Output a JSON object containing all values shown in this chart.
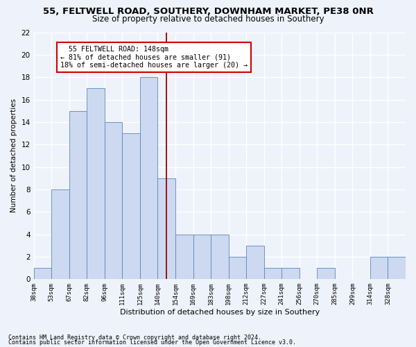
{
  "title1": "55, FELTWELL ROAD, SOUTHERY, DOWNHAM MARKET, PE38 0NR",
  "title2": "Size of property relative to detached houses in Southery",
  "xlabel": "Distribution of detached houses by size in Southery",
  "ylabel": "Number of detached properties",
  "bin_labels": [
    "38sqm",
    "53sqm",
    "67sqm",
    "82sqm",
    "96sqm",
    "111sqm",
    "125sqm",
    "140sqm",
    "154sqm",
    "169sqm",
    "183sqm",
    "198sqm",
    "212sqm",
    "227sqm",
    "241sqm",
    "256sqm",
    "270sqm",
    "285sqm",
    "299sqm",
    "314sqm",
    "328sqm"
  ],
  "bar_values": [
    1,
    8,
    15,
    17,
    14,
    13,
    18,
    9,
    4,
    4,
    4,
    2,
    3,
    1,
    1,
    0,
    1,
    0,
    0,
    2,
    2
  ],
  "bar_color": "#ccd9f0",
  "bar_edge_color": "#5588bb",
  "property_line_x": 7.5,
  "vline_color": "#990000",
  "annotation_text": "  55 FELTWELL ROAD: 148sqm\n← 81% of detached houses are smaller (91)\n18% of semi-detached houses are larger (20) →",
  "annotation_box_color": "#ffffff",
  "annotation_box_edge": "#cc0000",
  "ylim": [
    0,
    22
  ],
  "yticks": [
    0,
    2,
    4,
    6,
    8,
    10,
    12,
    14,
    16,
    18,
    20,
    22
  ],
  "footer1": "Contains HM Land Registry data © Crown copyright and database right 2024.",
  "footer2": "Contains public sector information licensed under the Open Government Licence v3.0.",
  "bg_color": "#eef2fb",
  "grid_color": "#ffffff",
  "title1_fontsize": 9.5,
  "title2_fontsize": 8.5
}
